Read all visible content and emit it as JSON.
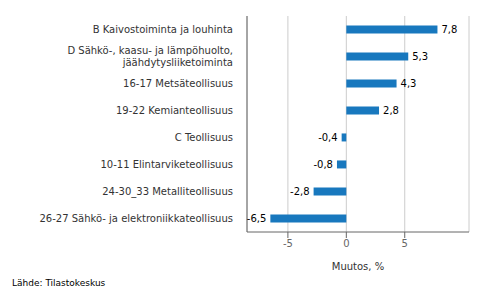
{
  "chart_data": {
    "type": "bar",
    "orientation": "horizontal",
    "categories": [
      "26-27 Sähkö- ja elektroniikkateollisuus",
      "24-30_33 Metalliteollisuus",
      "10-11 Elintarviketeollisuus",
      "C Teollisuus",
      "19-22 Kemianteollisuus",
      "16-17 Metsäteollisuus",
      "D Sähkö-, kaasu- ja lämpöhuolto,\njäähdytysliiketoiminta",
      "B Kaivostoiminta ja louhinta"
    ],
    "values": [
      -6.5,
      -2.8,
      -0.8,
      -0.4,
      2.8,
      4.3,
      5.3,
      7.8
    ],
    "value_labels": [
      "-6,5",
      "-2,8",
      "-0,8",
      "-0,4",
      "2,8",
      "4,3",
      "5,3",
      "7,8"
    ],
    "color": "#1878be",
    "xlabel": "Muutos, %",
    "xlim": [
      -8.5,
      10.5
    ],
    "xticks": [
      -5,
      0,
      5
    ],
    "grid": true,
    "data_labels": true,
    "annotations": [
      "Lähde: Tilastokeskus"
    ]
  }
}
